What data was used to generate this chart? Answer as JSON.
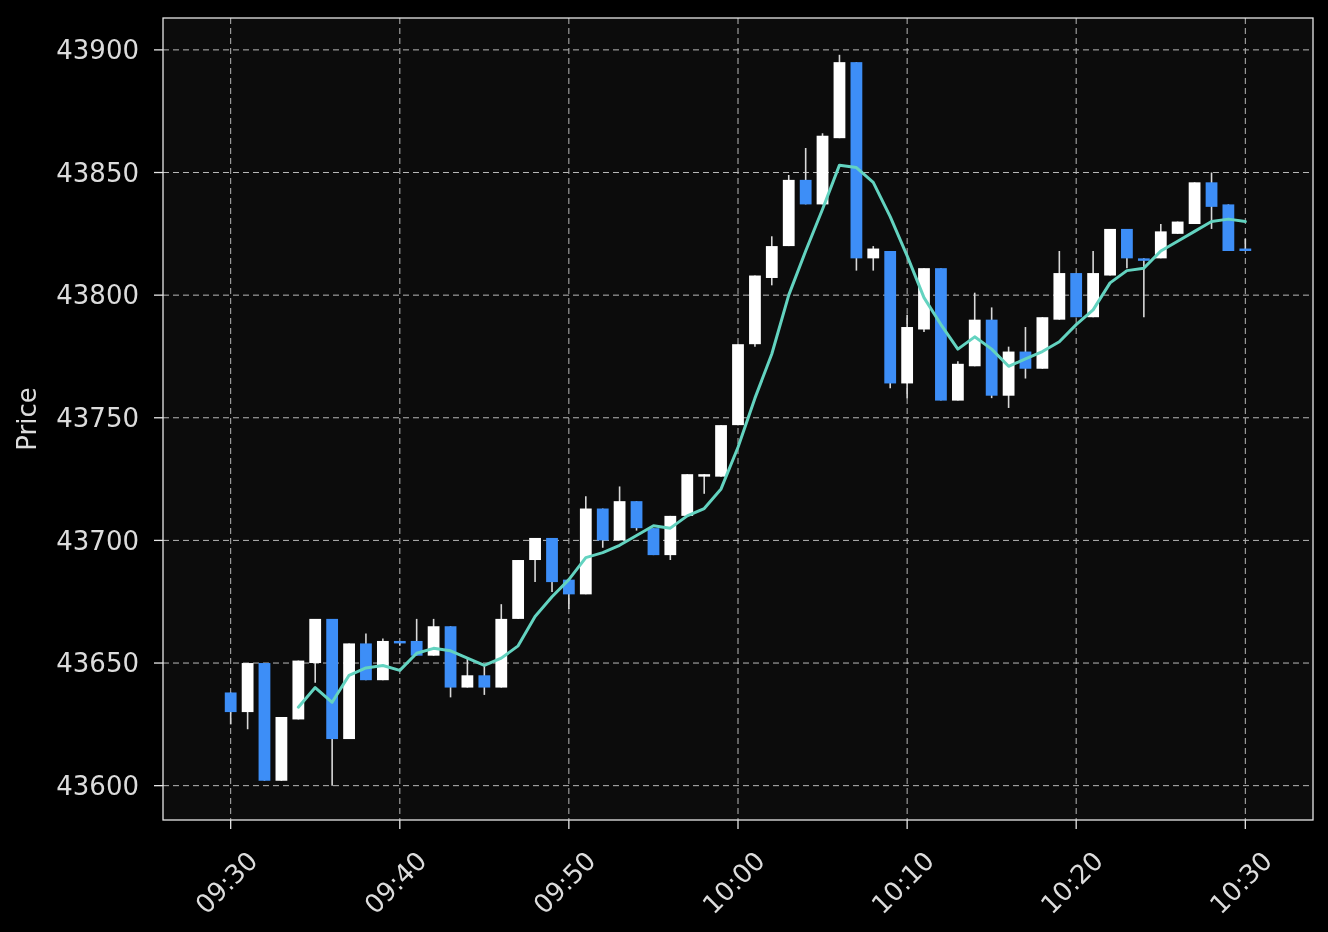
{
  "chart_data": {
    "type": "candlestick",
    "ylabel": "Price",
    "x": [
      9.5,
      9.5167,
      9.5333,
      9.55,
      9.5667,
      9.5833,
      9.6,
      9.6167,
      9.6333,
      9.65,
      9.6667,
      9.6833,
      9.7,
      9.7167,
      9.7333,
      9.75,
      9.7667,
      9.7833,
      9.8,
      9.8167,
      9.8333,
      9.85,
      9.8667,
      9.8833,
      9.9,
      9.9167,
      9.9333,
      9.95,
      9.9667,
      9.9833,
      10,
      10.0167,
      10.0333,
      10.05,
      10.0667,
      10.0833,
      10.1,
      10.1167,
      10.1333,
      10.15,
      10.1667,
      10.1833,
      10.2,
      10.2167,
      10.2333,
      10.25,
      10.2667,
      10.2833,
      10.3,
      10.3167,
      10.3333,
      10.35,
      10.3667,
      10.3833,
      10.4,
      10.4167,
      10.4333,
      10.45,
      10.4667,
      10.4833,
      10.5
    ],
    "xlim": [
      9.4333,
      10.5667
    ],
    "xticks": [
      {
        "value": 9.5,
        "label": "09:30"
      },
      {
        "value": 9.6667,
        "label": "09:40"
      },
      {
        "value": 9.8333,
        "label": "09:50"
      },
      {
        "value": 10,
        "label": "10:00"
      },
      {
        "value": 10.1667,
        "label": "10:10"
      },
      {
        "value": 10.3333,
        "label": "10:20"
      },
      {
        "value": 10.5,
        "label": "10:30"
      }
    ],
    "ylim": [
      43586,
      43913
    ],
    "yticks": [
      43600,
      43650,
      43700,
      43750,
      43800,
      43850,
      43900
    ],
    "grid": true,
    "series": [
      {
        "ohlc": [
          [
            43638,
            43638,
            43625,
            43630
          ],
          [
            43630,
            43650,
            43623,
            43650
          ],
          [
            43650,
            43650,
            43602,
            43602
          ],
          [
            43602,
            43628,
            43602,
            43628
          ],
          [
            43627,
            43651,
            43627,
            43651
          ],
          [
            43650,
            43668,
            43642,
            43668
          ],
          [
            43668,
            43668,
            43600,
            43619
          ],
          [
            43619,
            43658,
            43619,
            43658
          ],
          [
            43658,
            43662,
            43643,
            43643
          ],
          [
            43643,
            43660,
            43643,
            43659
          ],
          [
            43659,
            43659,
            43657,
            43658
          ],
          [
            43659,
            43668,
            43653,
            43653
          ],
          [
            43653,
            43668,
            43653,
            43665
          ],
          [
            43665,
            43665,
            43636,
            43640
          ],
          [
            43640,
            43652,
            43640,
            43645
          ],
          [
            43645,
            43649,
            43637,
            43640
          ],
          [
            43640,
            43674,
            43640,
            43668
          ],
          [
            43668,
            43692,
            43668,
            43692
          ],
          [
            43692,
            43701,
            43683,
            43701
          ],
          [
            43701,
            43701,
            43679,
            43683
          ],
          [
            43684,
            43684,
            43672,
            43678
          ],
          [
            43678,
            43718,
            43678,
            43713
          ],
          [
            43713,
            43713,
            43697,
            43700
          ],
          [
            43700,
            43722,
            43700,
            43716
          ],
          [
            43716,
            43716,
            43704,
            43705
          ],
          [
            43705,
            43705,
            43694,
            43694
          ],
          [
            43694,
            43710,
            43692,
            43710
          ],
          [
            43710,
            43727,
            43710,
            43727
          ],
          [
            43726,
            43727,
            43719,
            43727
          ],
          [
            43726,
            43747,
            43726,
            43747
          ],
          [
            43747,
            43780,
            43747,
            43780
          ],
          [
            43780,
            43808,
            43779,
            43808
          ],
          [
            43807,
            43824,
            43804,
            43820
          ],
          [
            43820,
            43849,
            43820,
            43847
          ],
          [
            43847,
            43860,
            43837,
            43837
          ],
          [
            43837,
            43866,
            43837,
            43865
          ],
          [
            43864,
            43898,
            43864,
            43895
          ],
          [
            43895,
            43895,
            43810,
            43815
          ],
          [
            43815,
            43820,
            43810,
            43819
          ],
          [
            43818,
            43818,
            43762,
            43764
          ],
          [
            43764,
            43792,
            43758,
            43787
          ],
          [
            43786,
            43811,
            43785,
            43811
          ],
          [
            43811,
            43811,
            43757,
            43757
          ],
          [
            43757,
            43773,
            43757,
            43772
          ],
          [
            43771,
            43801,
            43771,
            43790
          ],
          [
            43790,
            43795,
            43758,
            43759
          ],
          [
            43759,
            43779,
            43754,
            43777
          ],
          [
            43777,
            43787,
            43766,
            43770
          ],
          [
            43770,
            43791,
            43770,
            43791
          ],
          [
            43790,
            43818,
            43790,
            43809
          ],
          [
            43809,
            43809,
            43791,
            43791
          ],
          [
            43791,
            43818,
            43791,
            43809
          ],
          [
            43808,
            43827,
            43808,
            43827
          ],
          [
            43827,
            43827,
            43811,
            43815
          ],
          [
            43815,
            43815,
            43791,
            43814
          ],
          [
            43815,
            43829,
            43815,
            43826
          ],
          [
            43825,
            43830,
            43825,
            43830
          ],
          [
            43829,
            43846,
            43829,
            43846
          ],
          [
            43846,
            43850,
            43827,
            43836
          ],
          [
            43837,
            43837,
            43818,
            43818
          ],
          [
            43819,
            43823,
            43818,
            43818
          ]
        ],
        "colors": [
          "#3d8ef7",
          "#ffffff",
          "#3d8ef7",
          "#ffffff",
          "#ffffff",
          "#ffffff",
          "#3d8ef7",
          "#ffffff",
          "#3d8ef7",
          "#ffffff",
          "#3d8ef7",
          "#3d8ef7",
          "#ffffff",
          "#3d8ef7",
          "#ffffff",
          "#3d8ef7",
          "#ffffff",
          "#ffffff",
          "#ffffff",
          "#3d8ef7",
          "#3d8ef7",
          "#ffffff",
          "#3d8ef7",
          "#ffffff",
          "#3d8ef7",
          "#3d8ef7",
          "#ffffff",
          "#ffffff",
          "#ffffff",
          "#ffffff",
          "#ffffff",
          "#ffffff",
          "#ffffff",
          "#ffffff",
          "#3d8ef7",
          "#ffffff",
          "#ffffff",
          "#3d8ef7",
          "#ffffff",
          "#3d8ef7",
          "#ffffff",
          "#ffffff",
          "#3d8ef7",
          "#ffffff",
          "#ffffff",
          "#3d8ef7",
          "#ffffff",
          "#3d8ef7",
          "#ffffff",
          "#ffffff",
          "#3d8ef7",
          "#ffffff",
          "#ffffff",
          "#3d8ef7",
          "#3d8ef7",
          "#ffffff",
          "#ffffff",
          "#ffffff",
          "#3d8ef7",
          "#3d8ef7",
          "#3d8ef7"
        ]
      },
      {
        "type": "line",
        "color": "#63d3c0",
        "values": [
          null,
          null,
          null,
          null,
          43632,
          43640,
          43634,
          43645,
          43648,
          43649,
          43647,
          43654,
          43656,
          43655,
          43652,
          43649,
          43652,
          43657,
          43669,
          43677,
          43684,
          43693,
          43695,
          43698,
          43702,
          43706,
          43705,
          43710,
          43713,
          43721,
          43738,
          43758,
          43776,
          43800,
          43818,
          43835,
          43853,
          43852,
          43846,
          43832,
          43816,
          43799,
          43788,
          43778,
          43783,
          43778,
          43771,
          43774,
          43777,
          43781,
          43788,
          43794,
          43805,
          43810,
          43811,
          43818,
          43822,
          43826,
          43830,
          43831,
          43830
        ]
      }
    ]
  }
}
